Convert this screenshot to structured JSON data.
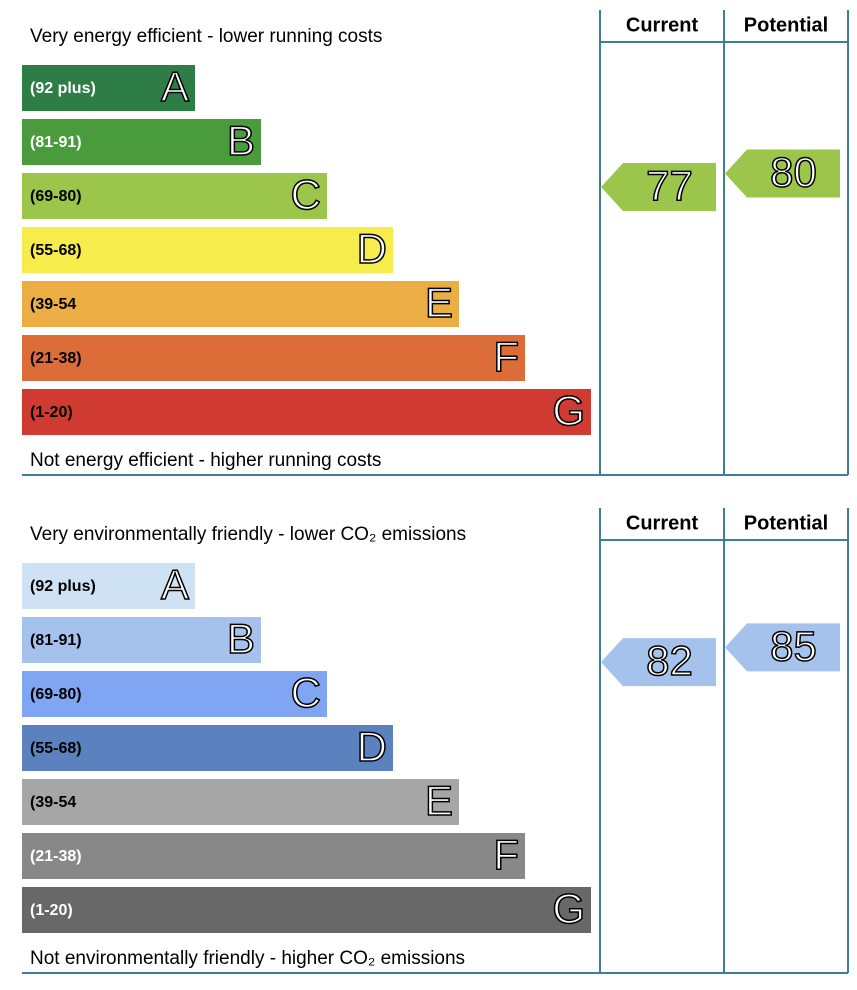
{
  "chart_data": [
    {
      "type": "epc",
      "top_label": "Very energy efficient - lower running costs",
      "bottom_label": "Not energy efficient - higher running costs",
      "columns": [
        "Current",
        "Potential"
      ],
      "bands": [
        {
          "range": "(92 plus)",
          "letter": "A",
          "color": "#2f7d46",
          "text_color": "#ffffff"
        },
        {
          "range": "(81-91)",
          "letter": "B",
          "color": "#4a9b3b",
          "text_color": "#ffffff"
        },
        {
          "range": "(69-80)",
          "letter": "C",
          "color": "#9cc54b",
          "text_color": "#000000"
        },
        {
          "range": "(55-68)",
          "letter": "D",
          "color": "#f6ec4b",
          "text_color": "#000000"
        },
        {
          "range": "(39-54",
          "letter": "E",
          "color": "#eaae45",
          "text_color": "#000000"
        },
        {
          "range": "(21-38)",
          "letter": "F",
          "color": "#dd6d38",
          "text_color": "#000000"
        },
        {
          "range": "(1-20)",
          "letter": "G",
          "color": "#cf3a31",
          "text_color": "#000000"
        }
      ],
      "values": [
        77,
        80
      ]
    },
    {
      "type": "epc",
      "top_label": "Very environmentally friendly - lower CO₂ emissions",
      "bottom_label": "Not environmentally friendly - higher CO₂ emissions",
      "columns": [
        "Current",
        "Potential"
      ],
      "bands": [
        {
          "range": "(92 plus)",
          "letter": "A",
          "color": "#cfe2f4",
          "text_color": "#000000"
        },
        {
          "range": "(81-91)",
          "letter": "B",
          "color": "#a4c2eb",
          "text_color": "#000000"
        },
        {
          "range": "(69-80)",
          "letter": "C",
          "color": "#7fa5f3",
          "text_color": "#000000"
        },
        {
          "range": "(55-68)",
          "letter": "D",
          "color": "#5b81bf",
          "text_color": "#000000"
        },
        {
          "range": "(39-54",
          "letter": "E",
          "color": "#a6a6a6",
          "text_color": "#000000"
        },
        {
          "range": "(21-38)",
          "letter": "F",
          "color": "#888888",
          "text_color": "#ffffff"
        },
        {
          "range": "(1-20)",
          "letter": "G",
          "color": "#686868",
          "text_color": "#ffffff"
        }
      ],
      "values": [
        82,
        85
      ]
    }
  ]
}
